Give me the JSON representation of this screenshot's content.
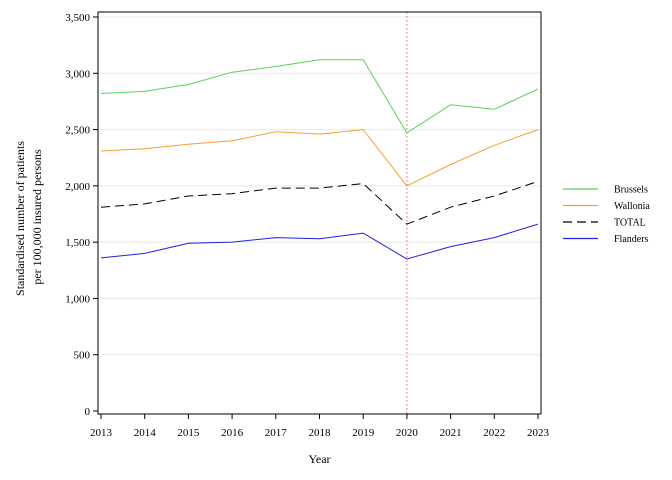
{
  "chart_data": {
    "type": "line",
    "xlabel": "Year",
    "ylabel_lines": [
      "Standardised number of patients",
      "per 100,000 insured persons"
    ],
    "x": [
      2013,
      2014,
      2015,
      2016,
      2017,
      2018,
      2019,
      2020,
      2021,
      2022,
      2023
    ],
    "xlim": [
      2013,
      2023
    ],
    "ylim": [
      0,
      3500
    ],
    "yticks": [
      0,
      500,
      1000,
      1500,
      2000,
      2500,
      3000,
      3500
    ],
    "ytick_labels": [
      "0",
      "500",
      "1,000",
      "1,500",
      "2,000",
      "2,500",
      "3,000",
      "3,500"
    ],
    "grid": "horizontal",
    "reference_line": {
      "x": 2020,
      "color": "#e0607a",
      "style": "dotted"
    },
    "legend_position": "right",
    "series": [
      {
        "name": "Brussels",
        "color": "#5cd05c",
        "dash": "",
        "values": [
          2820,
          2840,
          2900,
          3010,
          3060,
          3120,
          3120,
          2470,
          2720,
          2680,
          2860
        ]
      },
      {
        "name": "Wallonia",
        "color": "#f5a030",
        "dash": "",
        "values": [
          2310,
          2330,
          2370,
          2400,
          2480,
          2460,
          2500,
          2000,
          2190,
          2360,
          2500
        ]
      },
      {
        "name": "TOTAL",
        "color": "#000000",
        "dash": "9,5",
        "values": [
          1810,
          1840,
          1910,
          1930,
          1980,
          1980,
          2020,
          1660,
          1810,
          1910,
          2040
        ]
      },
      {
        "name": "Flanders",
        "color": "#2222e0",
        "dash": "",
        "values": [
          1360,
          1400,
          1490,
          1500,
          1540,
          1530,
          1580,
          1350,
          1460,
          1540,
          1660
        ]
      }
    ]
  }
}
